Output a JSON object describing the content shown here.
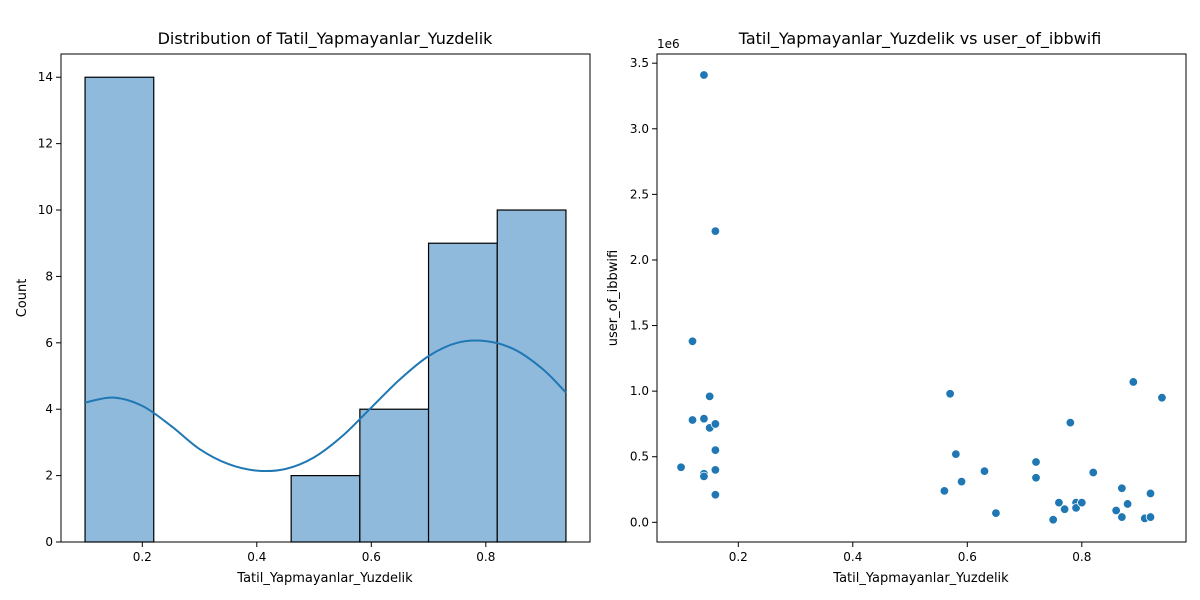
{
  "chart_data": [
    {
      "type": "bar",
      "title": "Distribution of Tatil_Yapmayanlar_Yuzdelik",
      "xlabel": "Tatil_Yapmayanlar_Yuzdelik",
      "ylabel": "Count",
      "xlim": [
        0.058,
        0.982
      ],
      "ylim": [
        0,
        14.7
      ],
      "xticks": [
        0.2,
        0.4,
        0.6,
        0.8
      ],
      "xtick_labels": [
        "0.2",
        "0.4",
        "0.6",
        "0.8"
      ],
      "yticks": [
        0,
        2,
        4,
        6,
        8,
        10,
        12,
        14
      ],
      "ytick_labels": [
        "0",
        "2",
        "4",
        "6",
        "8",
        "10",
        "12",
        "14"
      ],
      "bins": [
        {
          "x0": 0.1,
          "x1": 0.22,
          "count": 14
        },
        {
          "x0": 0.22,
          "x1": 0.34,
          "count": 0
        },
        {
          "x0": 0.34,
          "x1": 0.46,
          "count": 0
        },
        {
          "x0": 0.46,
          "x1": 0.58,
          "count": 2
        },
        {
          "x0": 0.58,
          "x1": 0.7,
          "count": 4
        },
        {
          "x0": 0.7,
          "x1": 0.82,
          "count": 9
        },
        {
          "x0": 0.82,
          "x1": 0.94,
          "count": 10
        }
      ],
      "kde": {
        "x": [
          0.1,
          0.15,
          0.2,
          0.25,
          0.3,
          0.35,
          0.4,
          0.45,
          0.5,
          0.55,
          0.6,
          0.65,
          0.7,
          0.75,
          0.8,
          0.85,
          0.9,
          0.94
        ],
        "y": [
          4.2,
          4.35,
          4.1,
          3.5,
          2.8,
          2.35,
          2.15,
          2.2,
          2.55,
          3.2,
          4.05,
          4.9,
          5.6,
          6.0,
          6.05,
          5.8,
          5.2,
          4.5
        ]
      },
      "colors": {
        "bar_fill": "#8fbadb",
        "bar_edge": "#000000",
        "kde_line": "#1f77b4"
      }
    },
    {
      "type": "scatter",
      "title": "Tatil_Yapmayanlar_Yuzdelik vs user_of_ibbwifi",
      "xlabel": "Tatil_Yapmayanlar_Yuzdelik",
      "ylabel": "user_of_ibbwifi",
      "offset_label": "1e6",
      "xlim": [
        0.058,
        0.982
      ],
      "ylim": [
        -0.15,
        3.57
      ],
      "xticks": [
        0.2,
        0.4,
        0.6,
        0.8
      ],
      "xtick_labels": [
        "0.2",
        "0.4",
        "0.6",
        "0.8"
      ],
      "yticks": [
        0.0,
        0.5,
        1.0,
        1.5,
        2.0,
        2.5,
        3.0,
        3.5
      ],
      "ytick_labels": [
        "0.0",
        "0.5",
        "1.0",
        "1.5",
        "2.0",
        "2.5",
        "3.0",
        "3.5"
      ],
      "points": [
        {
          "x": 0.1,
          "y": 0.42
        },
        {
          "x": 0.12,
          "y": 1.38
        },
        {
          "x": 0.12,
          "y": 0.78
        },
        {
          "x": 0.14,
          "y": 3.41
        },
        {
          "x": 0.14,
          "y": 0.79
        },
        {
          "x": 0.14,
          "y": 0.37
        },
        {
          "x": 0.14,
          "y": 0.35
        },
        {
          "x": 0.15,
          "y": 0.96
        },
        {
          "x": 0.15,
          "y": 0.72
        },
        {
          "x": 0.16,
          "y": 2.22
        },
        {
          "x": 0.16,
          "y": 0.75
        },
        {
          "x": 0.16,
          "y": 0.55
        },
        {
          "x": 0.16,
          "y": 0.4
        },
        {
          "x": 0.16,
          "y": 0.21
        },
        {
          "x": 0.56,
          "y": 0.24
        },
        {
          "x": 0.57,
          "y": 0.98
        },
        {
          "x": 0.58,
          "y": 0.52
        },
        {
          "x": 0.59,
          "y": 0.31
        },
        {
          "x": 0.63,
          "y": 0.39
        },
        {
          "x": 0.65,
          "y": 0.07
        },
        {
          "x": 0.72,
          "y": 0.46
        },
        {
          "x": 0.72,
          "y": 0.34
        },
        {
          "x": 0.75,
          "y": 0.02
        },
        {
          "x": 0.76,
          "y": 0.15
        },
        {
          "x": 0.77,
          "y": 0.1
        },
        {
          "x": 0.78,
          "y": 0.76
        },
        {
          "x": 0.79,
          "y": 0.15
        },
        {
          "x": 0.79,
          "y": 0.11
        },
        {
          "x": 0.8,
          "y": 0.15
        },
        {
          "x": 0.82,
          "y": 0.38
        },
        {
          "x": 0.86,
          "y": 0.09
        },
        {
          "x": 0.87,
          "y": 0.26
        },
        {
          "x": 0.87,
          "y": 0.04
        },
        {
          "x": 0.88,
          "y": 0.14
        },
        {
          "x": 0.89,
          "y": 1.07
        },
        {
          "x": 0.91,
          "y": 0.03
        },
        {
          "x": 0.92,
          "y": 0.22
        },
        {
          "x": 0.92,
          "y": 0.04
        },
        {
          "x": 0.94,
          "y": 0.95
        }
      ],
      "colors": {
        "point": "#1f77b4",
        "point_edge": "#ffffff"
      }
    }
  ]
}
